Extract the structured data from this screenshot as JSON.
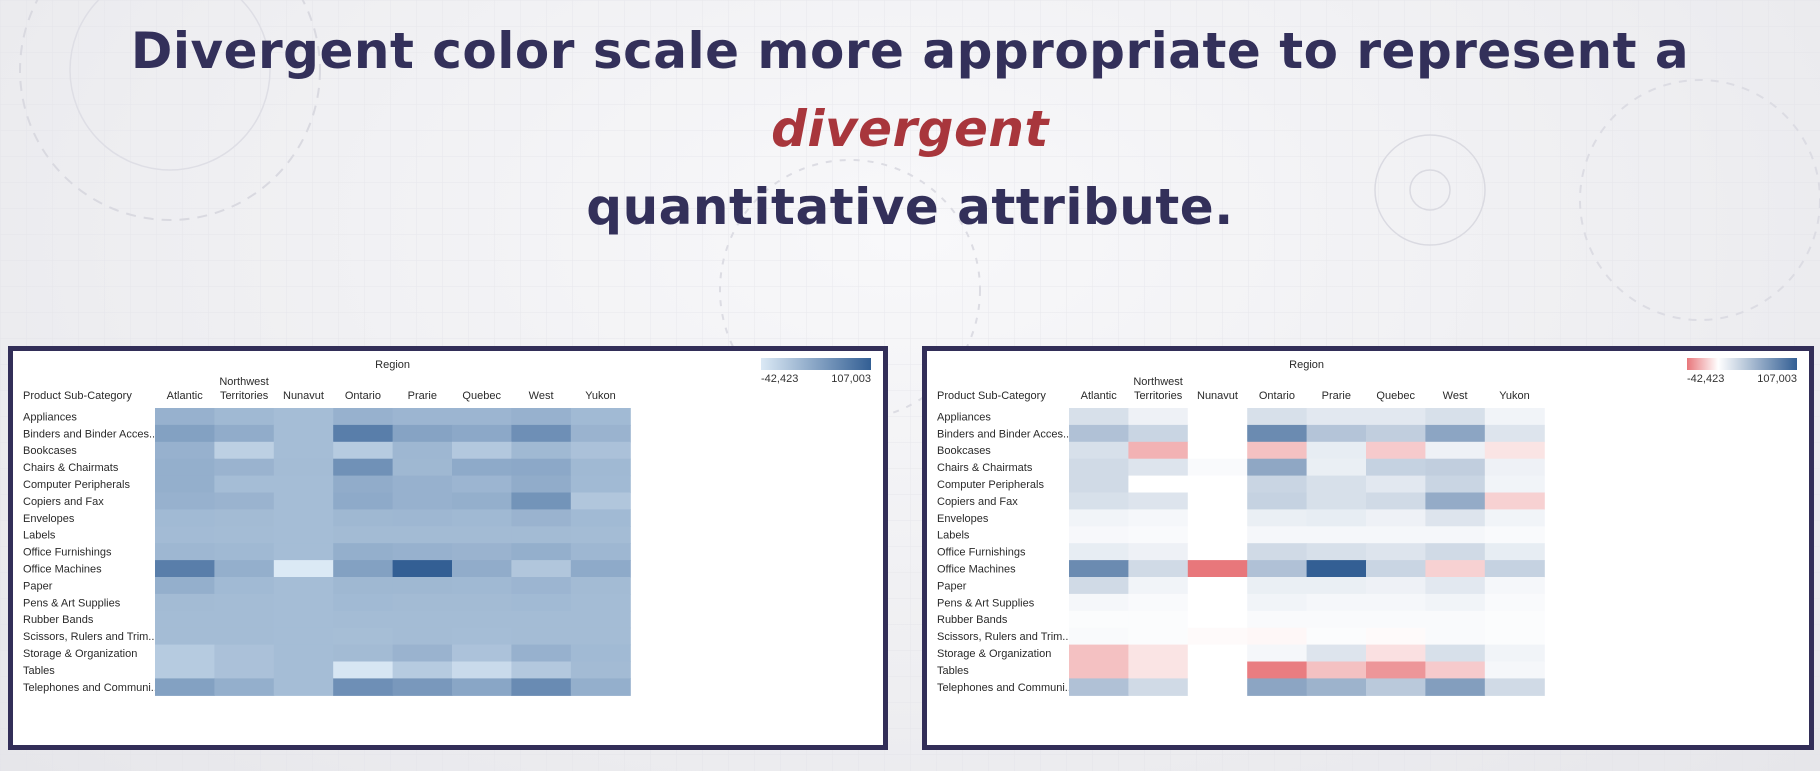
{
  "slide": {
    "title_part1": "Divergent color scale more appropriate to represent a ",
    "title_accent": "divergent",
    "title_part2": "quantitative attribute."
  },
  "colors": {
    "title": "#33305a",
    "accent": "#a8363c",
    "frame": "#322e58",
    "seq_low": "#dbe9f5",
    "seq_high": "#335f94",
    "div_neg": "#e8777b",
    "div_mid": "#ffffff",
    "div_pos": "#335f94"
  },
  "chart_data": [
    {
      "type": "heatmap",
      "color_scale": "sequential",
      "column_group": "Region",
      "row_header": "Product Sub-Category",
      "legend": {
        "min_label": "-42,423",
        "max_label": "107,003",
        "min": -42423,
        "max": 107003,
        "placement": "top-right"
      },
      "columns": [
        "Atlantic",
        "Northwest Territories",
        "Nunavut",
        "Ontario",
        "Prarie",
        "Quebec",
        "West",
        "Yukon"
      ],
      "rows": [
        "Appliances",
        "Binders and Binder Acces..",
        "Bookcases",
        "Chairs & Chairmats",
        "Computer Peripherals",
        "Copiers and Fax",
        "Envelopes",
        "Labels",
        "Office Furnishings",
        "Office Machines",
        "Paper",
        "Pens & Art Supplies",
        "Rubber Bands",
        "Scissors, Rulers and Trim..",
        "Storage & Organization",
        "Tables",
        "Telephones and Communi.."
      ],
      "values": [
        [
          12000,
          4000,
          0,
          12000,
          8000,
          8000,
          12000,
          3000
        ],
        [
          30000,
          18000,
          0,
          70000,
          28000,
          22000,
          50000,
          10000
        ],
        [
          12000,
          -20000,
          0,
          -15000,
          6000,
          -12000,
          4000,
          -5000
        ],
        [
          15000,
          10000,
          1000,
          48000,
          5000,
          20000,
          22000,
          4000
        ],
        [
          15000,
          0,
          0,
          18000,
          12000,
          8000,
          18000,
          3000
        ],
        [
          12000,
          10000,
          0,
          20000,
          12000,
          15000,
          45000,
          -10000
        ],
        [
          3000,
          2000,
          0,
          5000,
          6000,
          4000,
          10000,
          3000
        ],
        [
          1500,
          1000,
          0,
          2000,
          2000,
          2000,
          2000,
          1000
        ],
        [
          6000,
          4000,
          0,
          15000,
          12000,
          10000,
          15000,
          6000
        ],
        [
          70000,
          15000,
          -42423,
          30000,
          107003,
          18000,
          -10000,
          20000
        ],
        [
          15000,
          3000,
          0,
          5000,
          5000,
          4000,
          8000,
          2000
        ],
        [
          2000,
          1000,
          0,
          3000,
          2000,
          2000,
          3000,
          1000
        ],
        [
          500,
          500,
          0,
          1000,
          1000,
          1000,
          1000,
          500
        ],
        [
          1000,
          500,
          -500,
          -1000,
          500,
          -500,
          1000,
          500
        ],
        [
          -15000,
          -5000,
          0,
          2000,
          10000,
          -6000,
          12000,
          3000
        ],
        [
          -15000,
          -5000,
          0,
          -40000,
          -15000,
          -30000,
          -12000,
          2000
        ],
        [
          30000,
          15000,
          0,
          50000,
          40000,
          25000,
          55000,
          15000
        ]
      ]
    },
    {
      "type": "heatmap",
      "color_scale": "diverging",
      "column_group": "Region",
      "row_header": "Product Sub-Category",
      "legend": {
        "min_label": "-42,423",
        "max_label": "107,003",
        "min": -42423,
        "max": 107003,
        "placement": "top-right"
      },
      "columns": [
        "Atlantic",
        "Northwest Territories",
        "Nunavut",
        "Ontario",
        "Prarie",
        "Quebec",
        "West",
        "Yukon"
      ],
      "rows": [
        "Appliances",
        "Binders and Binder Acces..",
        "Bookcases",
        "Chairs & Chairmats",
        "Computer Peripherals",
        "Copiers and Fax",
        "Envelopes",
        "Labels",
        "Office Furnishings",
        "Office Machines",
        "Paper",
        "Pens & Art Supplies",
        "Rubber Bands",
        "Scissors, Rulers and Trim..",
        "Storage & Organization",
        "Tables",
        "Telephones and Communi.."
      ],
      "values": [
        [
          12000,
          4000,
          0,
          12000,
          8000,
          8000,
          12000,
          3000
        ],
        [
          30000,
          18000,
          0,
          70000,
          28000,
          22000,
          50000,
          10000
        ],
        [
          12000,
          -20000,
          0,
          -15000,
          6000,
          -12000,
          4000,
          -5000
        ],
        [
          15000,
          10000,
          1000,
          48000,
          5000,
          20000,
          22000,
          4000
        ],
        [
          15000,
          0,
          0,
          18000,
          12000,
          8000,
          18000,
          3000
        ],
        [
          12000,
          10000,
          0,
          20000,
          12000,
          15000,
          45000,
          -10000
        ],
        [
          3000,
          2000,
          0,
          5000,
          6000,
          4000,
          10000,
          3000
        ],
        [
          1500,
          1000,
          0,
          2000,
          2000,
          2000,
          2000,
          1000
        ],
        [
          6000,
          4000,
          0,
          15000,
          12000,
          10000,
          15000,
          6000
        ],
        [
          70000,
          15000,
          -42423,
          30000,
          107003,
          18000,
          -10000,
          20000
        ],
        [
          15000,
          3000,
          0,
          5000,
          5000,
          4000,
          8000,
          2000
        ],
        [
          2000,
          1000,
          0,
          3000,
          2000,
          2000,
          3000,
          1000
        ],
        [
          500,
          500,
          0,
          1000,
          1000,
          1000,
          1000,
          500
        ],
        [
          1000,
          500,
          -500,
          -1000,
          500,
          -500,
          1000,
          500
        ],
        [
          -15000,
          -5000,
          0,
          2000,
          10000,
          -6000,
          12000,
          3000
        ],
        [
          -15000,
          -5000,
          0,
          -40000,
          -15000,
          -30000,
          -12000,
          2000
        ],
        [
          30000,
          15000,
          0,
          50000,
          40000,
          25000,
          55000,
          15000
        ]
      ]
    }
  ]
}
